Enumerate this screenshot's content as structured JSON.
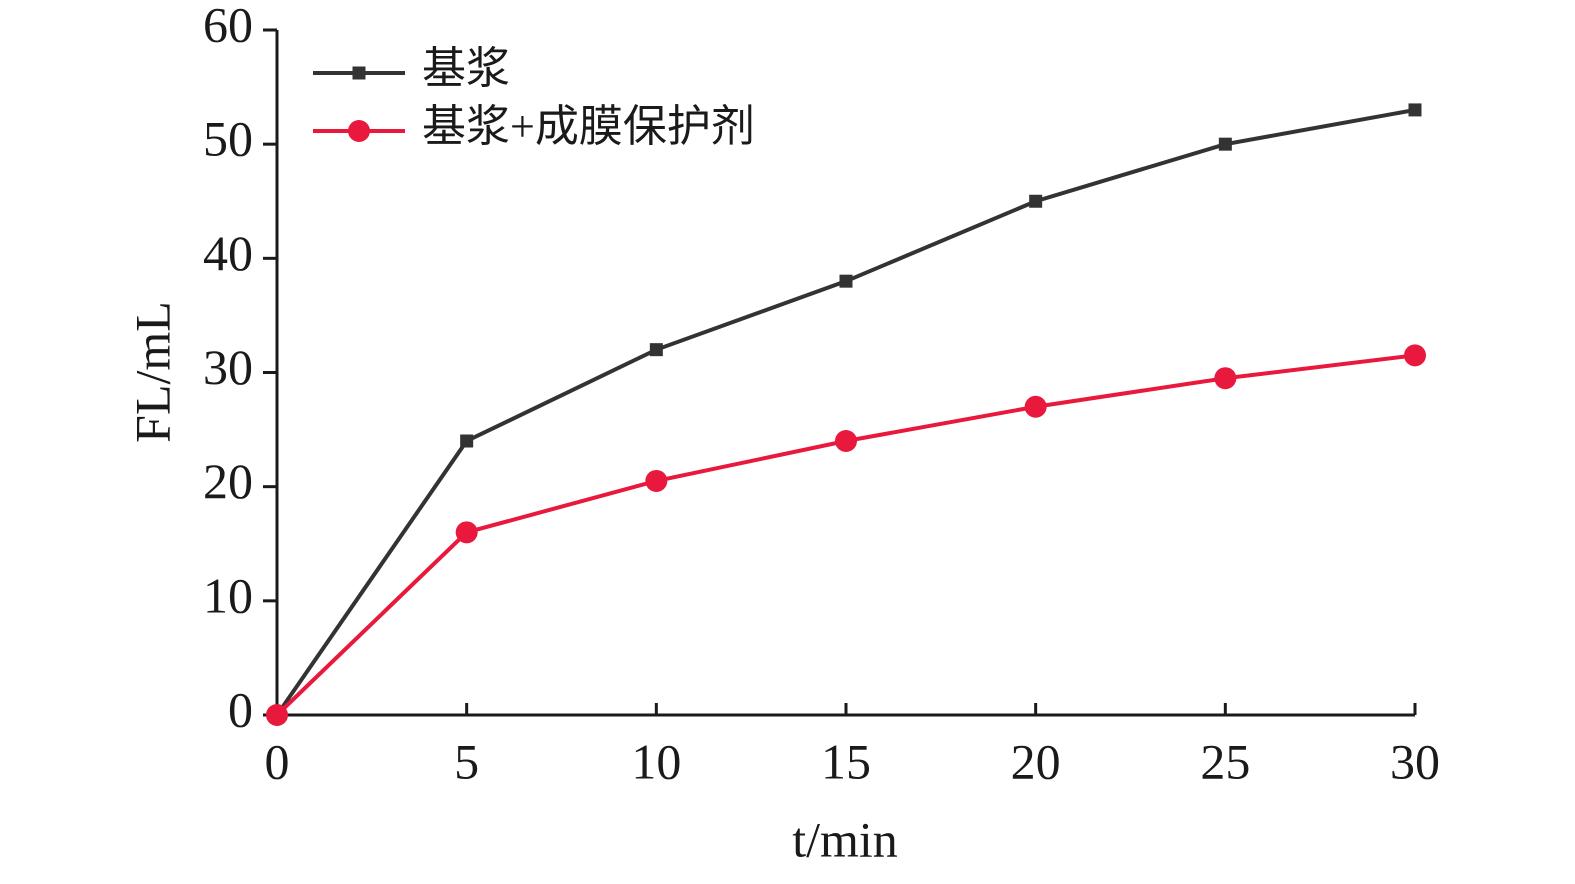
{
  "chart_data": {
    "type": "line",
    "x_label": "t/min",
    "y_label": "FL/mL",
    "x": [
      0,
      5,
      10,
      15,
      20,
      25,
      30
    ],
    "series": [
      {
        "name": "基浆",
        "color": "#333333",
        "marker": "square",
        "values": [
          0,
          24,
          32,
          38,
          45,
          50,
          53
        ]
      },
      {
        "name": "基浆+成膜保护剂",
        "color": "#e8193c",
        "marker": "circle",
        "values": [
          0,
          16,
          20.5,
          24,
          27,
          29.5,
          31.5
        ]
      }
    ],
    "xlim": [
      0,
      30
    ],
    "xticks": [
      0,
      5,
      10,
      15,
      20,
      25,
      30
    ],
    "ylim": [
      0,
      60
    ],
    "yticks": [
      0,
      10,
      20,
      30,
      40,
      50,
      60
    ],
    "legend": "upper-left",
    "grid": false
  }
}
